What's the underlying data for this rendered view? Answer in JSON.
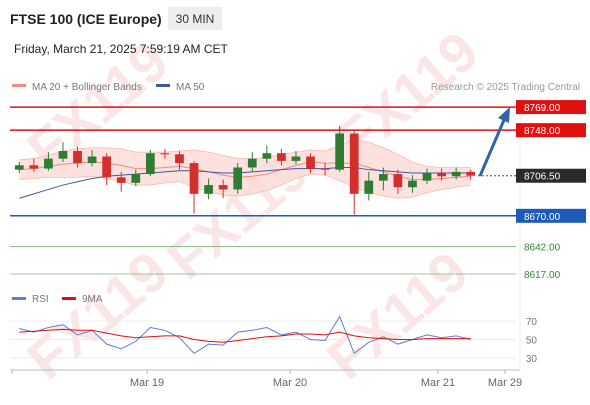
{
  "header": {
    "title": "FTSE 100 (ICE Europe)",
    "interval": "30 MIN",
    "timestamp": "Friday, March 21, 2025 7:59:19 AM CET",
    "credit": "Research © 2025 Trading Central",
    "watermark": "FX119"
  },
  "chart_data": [
    {
      "type": "candlestick",
      "ylim": [
        8607,
        8780
      ],
      "open": [
        8712,
        8716,
        8713,
        8722,
        8729,
        8718,
        8724,
        8705,
        8700,
        8708,
        8727,
        8726,
        8718,
        8690,
        8698,
        8694,
        8714,
        8722,
        8727,
        8720,
        8724,
        8713,
        8712,
        8745,
        8690,
        8702,
        8708,
        8696,
        8702,
        8709,
        8706,
        8710
      ],
      "high": [
        8719,
        8722,
        8728,
        8737,
        8733,
        8730,
        8727,
        8710,
        8712,
        8730,
        8731,
        8729,
        8720,
        8704,
        8703,
        8718,
        8728,
        8734,
        8731,
        8729,
        8727,
        8718,
        8752,
        8748,
        8710,
        8714,
        8712,
        8707,
        8713,
        8713,
        8714,
        8712
      ],
      "low": [
        8709,
        8710,
        8711,
        8719,
        8714,
        8715,
        8698,
        8692,
        8697,
        8706,
        8722,
        8712,
        8672,
        8685,
        8686,
        8690,
        8710,
        8718,
        8716,
        8717,
        8709,
        8707,
        8710,
        8671,
        8684,
        8693,
        8690,
        8691,
        8699,
        8702,
        8703,
        8703
      ],
      "close": [
        8716,
        8713,
        8722,
        8729,
        8718,
        8724,
        8705,
        8700,
        8708,
        8727,
        8726,
        8718,
        8690,
        8698,
        8694,
        8714,
        8722,
        8727,
        8720,
        8724,
        8713,
        8712,
        8745,
        8690,
        8702,
        8708,
        8696,
        8702,
        8709,
        8706,
        8710,
        8706.5
      ],
      "up_color": "#2e7d32",
      "down_color": "#d32f2f",
      "overlays": [
        {
          "name": "MA 20 + Bollinger Bands",
          "color": "#f08c84",
          "values": [
            8712,
            8713,
            8715,
            8717,
            8718,
            8719,
            8718,
            8716,
            8713,
            8713,
            8714,
            8715,
            8713,
            8710,
            8707,
            8705,
            8706,
            8708,
            8712,
            8716,
            8719,
            8718,
            8718,
            8718,
            8714,
            8710,
            8706,
            8703,
            8703,
            8704,
            8705,
            8706
          ],
          "upper": [
            8721,
            8722,
            8725,
            8729,
            8731,
            8732,
            8732,
            8731,
            8728,
            8728,
            8728,
            8729,
            8730,
            8728,
            8725,
            8722,
            8722,
            8723,
            8726,
            8728,
            8730,
            8729,
            8734,
            8740,
            8737,
            8732,
            8726,
            8719,
            8715,
            8714,
            8714,
            8714
          ],
          "lower": [
            8703,
            8704,
            8705,
            8705,
            8705,
            8706,
            8704,
            8701,
            8698,
            8698,
            8700,
            8701,
            8696,
            8692,
            8689,
            8688,
            8690,
            8693,
            8698,
            8704,
            8708,
            8707,
            8702,
            8696,
            8691,
            8688,
            8686,
            8687,
            8691,
            8694,
            8696,
            8698
          ]
        },
        {
          "name": "MA 50",
          "color": "#3f5a9a",
          "values": [
            8686,
            8690,
            8694,
            8698,
            8701,
            8704,
            8706,
            8707,
            8708,
            8709,
            8710,
            8711,
            8711,
            8710,
            8709,
            8709,
            8710,
            8711,
            8712,
            8713,
            8713,
            8713,
            8714,
            8714,
            8712,
            8711,
            8710,
            8709,
            8709,
            8709,
            8709,
            8709
          ]
        }
      ],
      "levels": [
        {
          "value": 8769,
          "label": "8769.00",
          "color": "#e01010",
          "style": "box"
        },
        {
          "value": 8748,
          "label": "8748.00",
          "color": "#e01010",
          "style": "box"
        },
        {
          "value": 8706.5,
          "label": "8706.50",
          "color": "#333333",
          "style": "current"
        },
        {
          "value": 8670,
          "label": "8670.00",
          "color": "#1e5bb8",
          "style": "box"
        },
        {
          "value": 8642,
          "label": "8642.00",
          "color": "#2e8b2e",
          "style": "text"
        },
        {
          "value": 8617,
          "label": "8617.00",
          "color": "#2e8b2e",
          "style": "text"
        }
      ]
    },
    {
      "type": "line",
      "ylim": [
        17,
        82
      ],
      "yticks": [
        70,
        50,
        30
      ],
      "series": [
        {
          "name": "RSI",
          "color": "#5b7fd6",
          "values": [
            62,
            58,
            63,
            66,
            55,
            60,
            45,
            40,
            48,
            63,
            60,
            52,
            35,
            45,
            44,
            58,
            60,
            63,
            55,
            58,
            50,
            49,
            75,
            35,
            47,
            53,
            45,
            50,
            55,
            52,
            54,
            50
          ]
        },
        {
          "name": "9MA",
          "color": "#e01010",
          "values": [
            58,
            59,
            60,
            61,
            60,
            60,
            57,
            54,
            52,
            53,
            54,
            54,
            50,
            48,
            47,
            49,
            51,
            53,
            54,
            56,
            56,
            55,
            58,
            54,
            52,
            51,
            50,
            50,
            51,
            51,
            51,
            51
          ]
        }
      ],
      "x_tick_labels": [
        "Mar 19",
        "Mar 20",
        "Mar 21",
        "Mar 29"
      ]
    }
  ]
}
